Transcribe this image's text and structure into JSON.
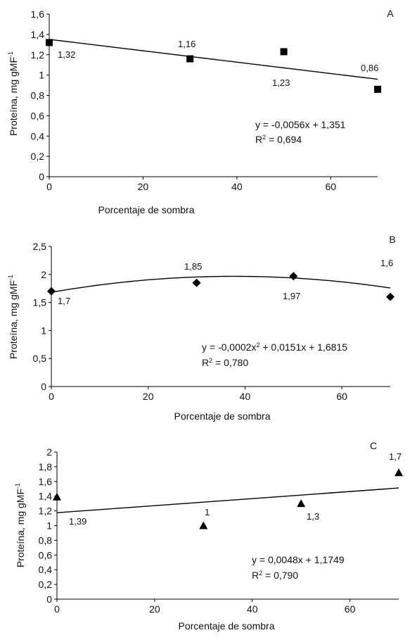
{
  "chart_data": [
    {
      "type": "scatter",
      "panel_label": "A",
      "xlabel": "Porcentaje de sombra",
      "ylabel": "Proteína, mg gMF",
      "ylabel_sup": "-1",
      "xlim": [
        0,
        70
      ],
      "ylim": [
        0,
        1.6
      ],
      "x_ticks": [
        "0",
        "20",
        "40",
        "60"
      ],
      "y_ticks": [
        "0",
        "0,2",
        "0,4",
        "0,6",
        "0,8",
        "1",
        "1,2",
        "1,4",
        "1,6"
      ],
      "marker": "square",
      "points": [
        {
          "x": 0,
          "y": 1.32,
          "label": "1,32"
        },
        {
          "x": 30,
          "y": 1.16,
          "label": "1,16"
        },
        {
          "x": 50,
          "y": 1.23,
          "label": "1,23"
        },
        {
          "x": 70,
          "y": 0.86,
          "label": "0,86"
        }
      ],
      "trendline": {
        "kind": "linear",
        "coef": [
          1.351,
          -0.0056
        ]
      },
      "equation": "y = -0,0056x + 1,351",
      "r2_prefix": "R",
      "r2_value": " = 0,694"
    },
    {
      "type": "scatter",
      "panel_label": "B",
      "xlabel": "Porcentaje de sombra",
      "ylabel": "Proteína, mg gMF",
      "ylabel_sup": "-1",
      "xlim": [
        0,
        70
      ],
      "ylim": [
        0,
        2.5
      ],
      "x_ticks": [
        "0",
        "20",
        "40",
        "60"
      ],
      "y_ticks": [
        "0",
        "0,5",
        "1",
        "1,5",
        "2",
        "2,5"
      ],
      "marker": "diamond",
      "points": [
        {
          "x": 0,
          "y": 1.7,
          "label": "1,7"
        },
        {
          "x": 30,
          "y": 1.85,
          "label": "1,85"
        },
        {
          "x": 50,
          "y": 1.97,
          "label": "1,97"
        },
        {
          "x": 70,
          "y": 1.6,
          "label": "1,6"
        }
      ],
      "trendline": {
        "kind": "poly2",
        "coef": [
          1.6815,
          0.0151,
          -0.0002
        ]
      },
      "equation_a": "y = -0,0002x",
      "equation_b": " + 0,0151x + 1,6815",
      "r2_prefix": "R",
      "r2_value": " = 0,780"
    },
    {
      "type": "scatter",
      "panel_label": "C",
      "xlabel": "Porcentaje de sombra",
      "ylabel": "Proteína, mg gMF",
      "ylabel_sup": "-1",
      "xlim": [
        0,
        70
      ],
      "ylim": [
        0,
        2
      ],
      "x_ticks": [
        "0",
        "20",
        "40",
        "60"
      ],
      "y_ticks": [
        "0",
        "0,2",
        "0,4",
        "0,6",
        "0,8",
        "1",
        "1,2",
        "1,4",
        "1,6",
        "1,8",
        "2"
      ],
      "marker": "triangle",
      "points": [
        {
          "x": 0,
          "y": 1.39,
          "label": "1,39"
        },
        {
          "x": 30,
          "y": 1.0,
          "label": "1"
        },
        {
          "x": 50,
          "y": 1.3,
          "label": "1,3"
        },
        {
          "x": 70,
          "y": 1.72,
          "label": "1,7"
        }
      ],
      "trendline": {
        "kind": "linear",
        "coef": [
          1.1749,
          0.0048
        ]
      },
      "equation": "y = 0,0048x + 1,1749",
      "r2_prefix": "R",
      "r2_value": " = 0,790"
    }
  ]
}
